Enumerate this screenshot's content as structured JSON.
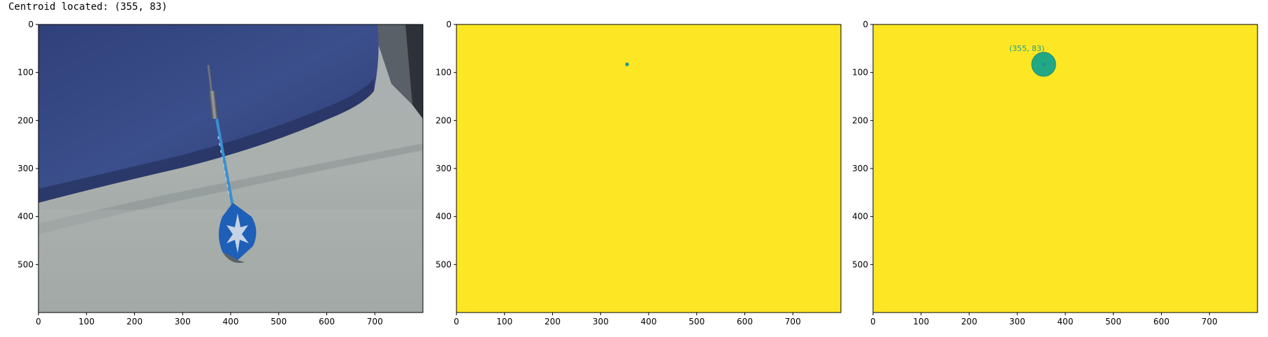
{
  "output": {
    "text": "Centroid located: (355, 83)"
  },
  "image": {
    "width": 800,
    "height": 600
  },
  "centroid": {
    "x": 355,
    "y": 83
  },
  "colors": {
    "background_mask": "#fde725",
    "dot": "#21918c",
    "circle_fill": "#22a884",
    "annotation_text": "#21a08a",
    "frame": "#000000"
  },
  "chart_data": [
    {
      "type": "image",
      "content": "photo: blue dart standing on a grey couch cushion",
      "x_ticks": [
        0,
        100,
        200,
        300,
        400,
        500,
        600,
        700
      ],
      "y_ticks": [
        0,
        100,
        200,
        300,
        400,
        500
      ],
      "xlim": [
        0,
        800
      ],
      "ylim": [
        600,
        0
      ]
    },
    {
      "type": "image",
      "content": "binary mask (yellow) with a small teal dot at the centroid",
      "x_ticks": [
        0,
        100,
        200,
        300,
        400,
        500,
        600,
        700
      ],
      "y_ticks": [
        0,
        100,
        200,
        300,
        400,
        500
      ],
      "xlim": [
        0,
        800
      ],
      "ylim": [
        600,
        0
      ],
      "marks": [
        {
          "kind": "dot",
          "x": 355,
          "y": 83
        }
      ]
    },
    {
      "type": "image",
      "content": "mask with centroid circled and annotated",
      "x_ticks": [
        0,
        100,
        200,
        300,
        400,
        500,
        600,
        700
      ],
      "y_ticks": [
        0,
        100,
        200,
        300,
        400,
        500
      ],
      "xlim": [
        0,
        800
      ],
      "ylim": [
        600,
        0
      ],
      "marks": [
        {
          "kind": "circle",
          "x": 355,
          "y": 83,
          "r": 25
        },
        {
          "kind": "dot",
          "x": 355,
          "y": 83
        }
      ],
      "annotation": {
        "text": "(355, 83)",
        "x": 320,
        "y": 55
      }
    }
  ]
}
